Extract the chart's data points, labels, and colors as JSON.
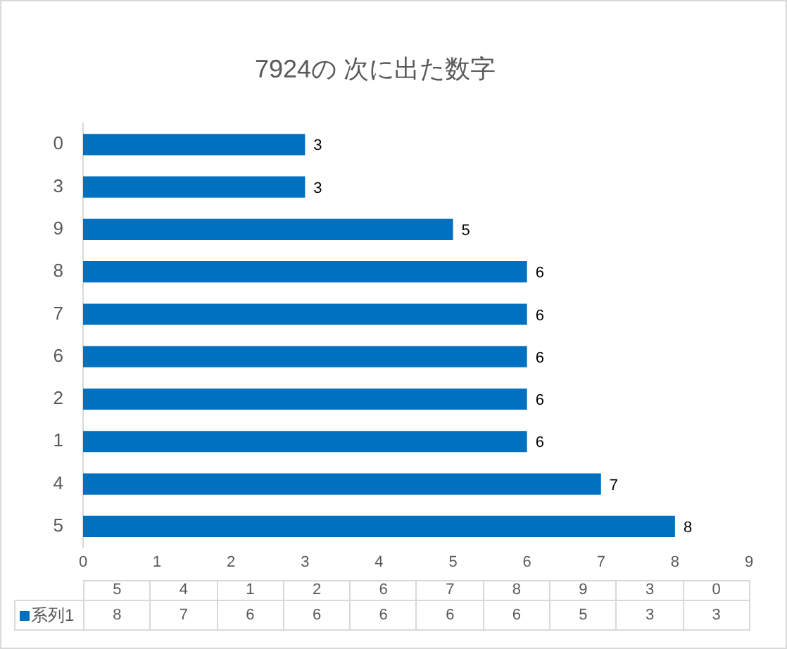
{
  "chart_data": {
    "type": "bar",
    "orientation": "horizontal",
    "title": "7924の 次に出た数字",
    "categories": [
      "0",
      "3",
      "9",
      "8",
      "7",
      "6",
      "2",
      "1",
      "4",
      "5"
    ],
    "series": [
      {
        "name": "系列1",
        "color": "#0070c0",
        "values": [
          3,
          3,
          5,
          6,
          6,
          6,
          6,
          6,
          7,
          8
        ]
      }
    ],
    "xlim": [
      0,
      9
    ],
    "xticks": [
      0,
      1,
      2,
      3,
      4,
      5,
      6,
      7,
      8,
      9
    ],
    "data_labels": true,
    "grid": false,
    "legend": "bottom left"
  }
}
